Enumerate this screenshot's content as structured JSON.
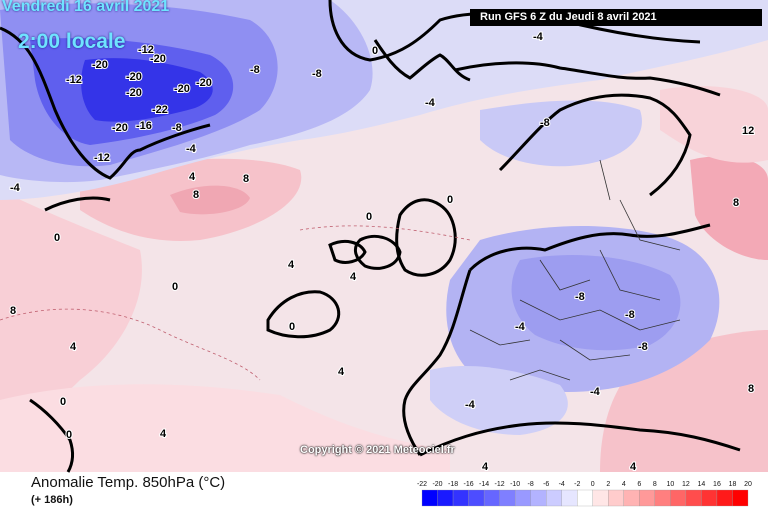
{
  "header": {
    "date": "Vendredi 16 avril 2021",
    "time": "2:00 locale",
    "run": "Run GFS 6 Z du Jeudi 8 avril 2021"
  },
  "footer": {
    "title": "Anomalie Temp. 850hPa (°C)",
    "lead": "(+ 186h)",
    "copyright": "Copyright © 2021 Meteociel.fr"
  },
  "scale": {
    "ticks": [
      "-22",
      "-20",
      "-18",
      "-16",
      "-14",
      "-12",
      "-10",
      "-8",
      "-6",
      "-4",
      "-2",
      "0",
      "2",
      "4",
      "6",
      "8",
      "10",
      "12",
      "14",
      "16",
      "18",
      "20"
    ],
    "colors": [
      "#0000ff",
      "#1a1aff",
      "#3333ff",
      "#4d4dff",
      "#6666ff",
      "#7f7fff",
      "#9999ff",
      "#b3b3ff",
      "#ccccff",
      "#e6e6ff",
      "#ffffff",
      "#ffe6e6",
      "#ffcccc",
      "#ffb3b3",
      "#ff9999",
      "#ff7f7f",
      "#ff6666",
      "#ff4d4d",
      "#ff3333",
      "#ff1a1a",
      "#ff0000"
    ]
  },
  "map_labels": [
    "-20",
    "-20",
    "-20",
    "-20",
    "-20",
    "-20",
    "-22",
    "-20",
    "-16",
    "-12",
    "-12",
    "-12",
    "-8",
    "-8",
    "-8",
    "-8",
    "-8",
    "-8",
    "-8",
    "-4",
    "-4",
    "-4",
    "-4",
    "-4",
    "-4",
    "-4",
    "0",
    "0",
    "0",
    "0",
    "0",
    "0",
    "0",
    "0",
    "4",
    "4",
    "4",
    "4",
    "4",
    "4",
    "4",
    "4",
    "8",
    "8",
    "8",
    "8",
    "8",
    "12"
  ]
}
